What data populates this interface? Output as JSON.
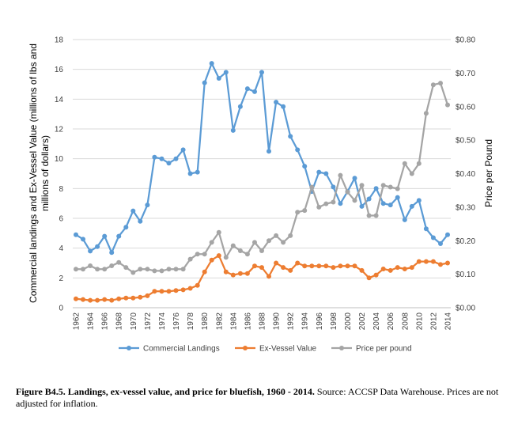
{
  "chart_data": {
    "type": "line",
    "title": "",
    "xlabel": "",
    "ylabel_left": "Commercial landings and Ex-Vessel Value (millions of lbs and millions of dollars)",
    "ylabel_left_lines": [
      "Commercial landings and Ex-Vessel Value (millions of lbs and",
      "millions of dollars)"
    ],
    "ylabel_right": "Price per Pound",
    "ylim_left": [
      0,
      18
    ],
    "ylim_right": [
      0,
      0.8
    ],
    "yticks_left": [
      "0",
      "2",
      "4",
      "6",
      "8",
      "10",
      "12",
      "14",
      "16",
      "18"
    ],
    "yticks_right": [
      "$0.00",
      "$0.10",
      "$0.20",
      "$0.30",
      "$0.40",
      "$0.50",
      "$0.60",
      "$0.70",
      "$0.80"
    ],
    "grid": true,
    "legend_position": "bottom",
    "x": [
      1962,
      1963,
      1964,
      1965,
      1966,
      1967,
      1968,
      1969,
      1970,
      1971,
      1972,
      1973,
      1974,
      1975,
      1976,
      1977,
      1978,
      1979,
      1980,
      1981,
      1982,
      1983,
      1984,
      1985,
      1986,
      1987,
      1988,
      1989,
      1990,
      1991,
      1992,
      1993,
      1994,
      1995,
      1996,
      1997,
      1998,
      1999,
      2000,
      2001,
      2002,
      2003,
      2004,
      2005,
      2006,
      2007,
      2008,
      2009,
      2010,
      2011,
      2012,
      2013,
      2014
    ],
    "xtick_labels": [
      "1962",
      "1964",
      "1966",
      "1968",
      "1970",
      "1972",
      "1974",
      "1976",
      "1978",
      "1980",
      "1982",
      "1984",
      "1986",
      "1988",
      "1990",
      "1992",
      "1994",
      "1996",
      "1998",
      "2000",
      "2002",
      "2004",
      "2006",
      "2008",
      "2010",
      "2012",
      "2014"
    ],
    "series": [
      {
        "name": "Commercial Landings",
        "axis": "left",
        "color": "#5b9bd5",
        "values": [
          4.9,
          4.6,
          3.8,
          4.1,
          4.8,
          3.7,
          4.8,
          5.4,
          6.5,
          5.8,
          6.9,
          10.1,
          10.0,
          9.7,
          10.0,
          10.6,
          9.0,
          9.1,
          15.1,
          16.4,
          15.4,
          15.8,
          11.9,
          13.5,
          14.7,
          14.5,
          15.8,
          10.5,
          13.8,
          13.5,
          11.5,
          10.6,
          9.5,
          7.8,
          9.1,
          9.0,
          8.1,
          7.0,
          7.8,
          8.7,
          6.8,
          7.3,
          8.0,
          7.0,
          6.9,
          7.4,
          5.9,
          6.8,
          7.2,
          5.3,
          4.7,
          4.3,
          4.9
        ]
      },
      {
        "name": "Ex-Vessel Value",
        "axis": "left",
        "color": "#ed7d31",
        "values": [
          0.6,
          0.55,
          0.5,
          0.5,
          0.55,
          0.5,
          0.6,
          0.65,
          0.65,
          0.7,
          0.8,
          1.1,
          1.1,
          1.1,
          1.15,
          1.2,
          1.3,
          1.5,
          2.4,
          3.2,
          3.5,
          2.4,
          2.2,
          2.3,
          2.3,
          2.8,
          2.7,
          2.1,
          3.0,
          2.7,
          2.5,
          3.0,
          2.8,
          2.8,
          2.8,
          2.8,
          2.7,
          2.8,
          2.8,
          2.8,
          2.5,
          2.0,
          2.2,
          2.6,
          2.5,
          2.7,
          2.6,
          2.7,
          3.1,
          3.1,
          3.1,
          2.9,
          3.0
        ]
      },
      {
        "name": "Price per pound",
        "axis": "right",
        "color": "#a5a5a5",
        "values": [
          0.115,
          0.115,
          0.125,
          0.115,
          0.115,
          0.125,
          0.135,
          0.12,
          0.105,
          0.115,
          0.115,
          0.11,
          0.11,
          0.115,
          0.115,
          0.115,
          0.145,
          0.16,
          0.16,
          0.195,
          0.225,
          0.15,
          0.185,
          0.17,
          0.16,
          0.195,
          0.17,
          0.2,
          0.215,
          0.195,
          0.215,
          0.285,
          0.29,
          0.36,
          0.3,
          0.31,
          0.315,
          0.395,
          0.345,
          0.32,
          0.365,
          0.275,
          0.275,
          0.365,
          0.36,
          0.355,
          0.43,
          0.4,
          0.43,
          0.58,
          0.665,
          0.67,
          0.605
        ]
      }
    ]
  },
  "caption": {
    "bold": "Figure B4.5. Landings, ex-vessel value, and price for bluefish, 1960 - 2014.",
    "normal": " Source: ACCSP Data Warehouse. Prices are not adjusted for inflation."
  }
}
